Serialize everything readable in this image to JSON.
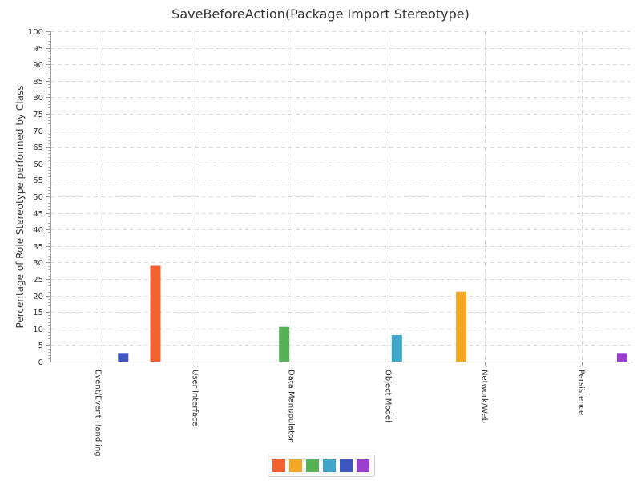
{
  "chart_data": {
    "type": "bar",
    "title": "SaveBeforeAction(Package Import Stereotype)",
    "xlabel": "",
    "ylabel": "Percentage of Role Stereotype performed by Class",
    "ylim": [
      0,
      100
    ],
    "y_major_step": 5,
    "y_minor_step": 1,
    "grid": true,
    "legend": "bottom",
    "categories": [
      "Event/Event Handling",
      "User Interface",
      "Data Manupulator",
      "Object Model",
      "Network/Web",
      "Persistence"
    ],
    "series": [
      {
        "color": "#f26230",
        "values": [
          0,
          29,
          0,
          0,
          0,
          0
        ]
      },
      {
        "color": "#f5a623",
        "values": [
          0,
          0,
          0,
          0,
          21.2,
          0
        ]
      },
      {
        "color": "#56b356",
        "values": [
          0,
          0,
          10.5,
          0,
          0,
          0
        ]
      },
      {
        "color": "#3fa7c9",
        "values": [
          0,
          0,
          0,
          8,
          0,
          0
        ]
      },
      {
        "color": "#3f55c0",
        "values": [
          2.6,
          0,
          0,
          0,
          0,
          0
        ]
      },
      {
        "color": "#9b3fcf",
        "values": [
          0,
          0,
          0,
          0,
          0,
          2.6
        ]
      }
    ]
  }
}
